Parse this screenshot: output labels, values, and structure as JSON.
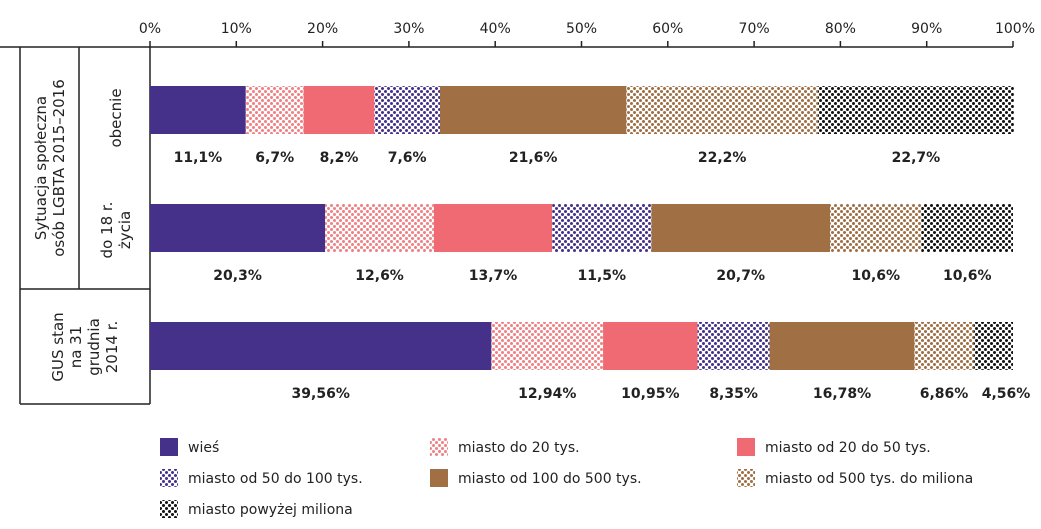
{
  "chart_data": {
    "type": "bar",
    "orientation": "horizontal",
    "stacked": true,
    "x_ticks": [
      "0%",
      "10%",
      "20%",
      "30%",
      "40%",
      "50%",
      "60%",
      "70%",
      "80%",
      "90%",
      "100%"
    ],
    "xlim": [
      0,
      100
    ],
    "axis_position": "top",
    "legend_position": "bottom",
    "group_labels": [
      {
        "lines": [
          "Sytuacja społeczna",
          "osób LGBTA 2015–2016"
        ],
        "rows": [
          0,
          1
        ]
      },
      {
        "lines": [
          "GUS stan",
          "na 31",
          "grudnia",
          "2014 r."
        ],
        "rows": [
          2
        ]
      }
    ],
    "categories": [
      {
        "lines": [
          "obecnie"
        ]
      },
      {
        "lines": [
          "do 18 r.",
          "życia"
        ]
      },
      {
        "lines": [
          ""
        ]
      }
    ],
    "series": [
      {
        "name": "wieś",
        "color": "#45318a",
        "pattern": "solid",
        "values": [
          11.1,
          20.3,
          39.56
        ],
        "labels": [
          "11,1%",
          "20,3%",
          "39,56%"
        ]
      },
      {
        "name": "miasto do 20 tys.",
        "color": "#f08083",
        "pattern": "dots",
        "values": [
          6.7,
          12.6,
          12.94
        ],
        "labels": [
          "6,7%",
          "12,6%",
          "12,94%"
        ]
      },
      {
        "name": "miasto od 20 do 50 tys.",
        "color": "#ef6a72",
        "pattern": "solid",
        "values": [
          8.2,
          13.7,
          10.95
        ],
        "labels": [
          "8,2%",
          "13,7%",
          "10,95%"
        ]
      },
      {
        "name": "miasto od 50 do 100 tys.",
        "color": "#45318a",
        "pattern": "dots",
        "values": [
          7.6,
          11.5,
          8.35
        ],
        "labels": [
          "7,6%",
          "11,5%",
          "8,35%"
        ]
      },
      {
        "name": "miasto od 100 do 500 tys.",
        "color": "#a06f44",
        "pattern": "solid",
        "values": [
          21.6,
          20.7,
          16.78
        ],
        "labels": [
          "21,6%",
          "20,7%",
          "16,78%"
        ]
      },
      {
        "name": "miasto od 500 tys. do miliona",
        "color": "#a06f44",
        "pattern": "dots",
        "values": [
          22.2,
          10.6,
          6.86
        ],
        "labels": [
          "22,2%",
          "10,6%",
          "6,86%"
        ]
      },
      {
        "name": "miasto powyżej miliona",
        "color": "#111111",
        "pattern": "dots",
        "values": [
          22.7,
          10.6,
          4.56
        ],
        "labels": [
          "22,7%",
          "10,6%",
          "4,56%"
        ]
      }
    ]
  }
}
